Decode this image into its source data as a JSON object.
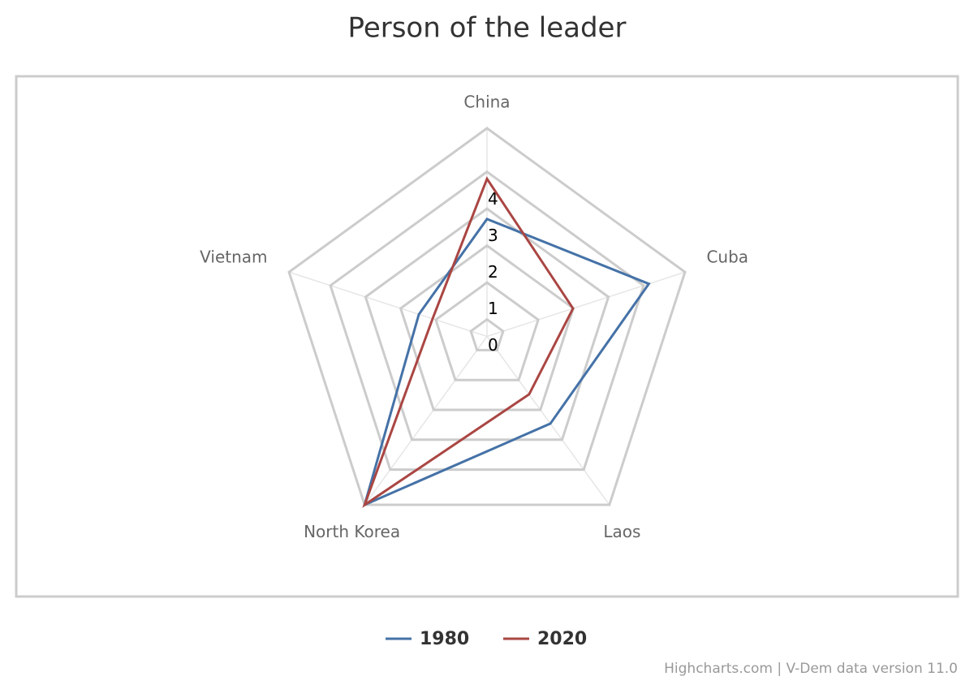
{
  "chart_data": {
    "type": "radar",
    "title": "Person of the leader",
    "categories": [
      "China",
      "Cuba",
      "Laos",
      "North Korea",
      "Vietnam"
    ],
    "series": [
      {
        "name": "1980",
        "color": "#4572a7",
        "values": [
          2.72,
          4.15,
          2.46,
          5.18,
          1.48
        ]
      },
      {
        "name": "2020",
        "color": "#aa4643",
        "values": [
          3.81,
          1.99,
          1.48,
          5.18,
          1.09
        ]
      }
    ],
    "ylim": [
      -0.46,
      5.18
    ],
    "yticks": [
      0,
      1,
      2,
      3,
      4
    ],
    "grid": true,
    "credits": "Highcharts.com | V-Dem data version 11.0"
  }
}
